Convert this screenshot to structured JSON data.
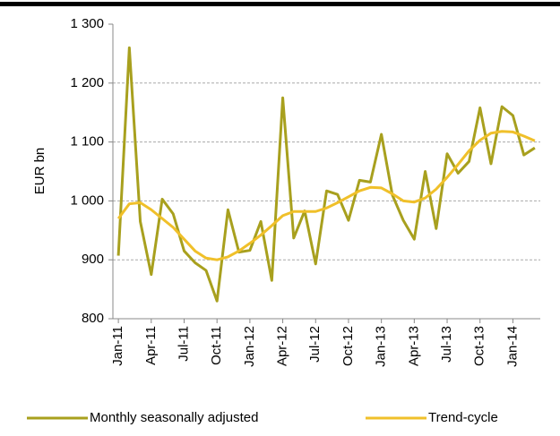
{
  "chart_data": {
    "type": "line",
    "y_label": "EUR bn",
    "categories": [
      "Jan-11",
      null,
      null,
      "Apr-11",
      null,
      null,
      "Jul-11",
      null,
      null,
      "Oct-11",
      null,
      null,
      "Jan-12",
      null,
      null,
      "Apr-12",
      null,
      null,
      "Jul-12",
      null,
      null,
      "Oct-12",
      null,
      null,
      "Jan-13",
      null,
      null,
      "Apr-13",
      null,
      null,
      "Jul-13",
      null,
      null,
      "Oct-13",
      null,
      null,
      "Jan-14",
      null,
      null
    ],
    "series": [
      {
        "name": "Monthly seasonally adjusted",
        "color": "#a8a01e",
        "values": [
          907,
          1260,
          965,
          875,
          1003,
          978,
          915,
          895,
          882,
          830,
          985,
          913,
          916,
          965,
          865,
          1175,
          937,
          983,
          893,
          1017,
          1011,
          967,
          1035,
          1032,
          1113,
          1010,
          967,
          935,
          1050,
          953,
          1080,
          1047,
          1067,
          1158,
          1063,
          1160,
          1145,
          1078,
          1090
        ]
      },
      {
        "name": "Trend-cycle",
        "color": "#f0c02a",
        "values": [
          970,
          995,
          997,
          985,
          970,
          955,
          935,
          915,
          903,
          900,
          905,
          915,
          928,
          942,
          958,
          975,
          982,
          982,
          982,
          988,
          997,
          1007,
          1017,
          1023,
          1022,
          1012,
          1000,
          998,
          1005,
          1020,
          1040,
          1062,
          1085,
          1103,
          1115,
          1118,
          1117,
          1110,
          1102
        ]
      }
    ],
    "ylim": [
      800,
      1300
    ],
    "yticks": [
      {
        "value": 800,
        "label": "800"
      },
      {
        "value": 900,
        "label": "900"
      },
      {
        "value": 1000,
        "label": "1 000"
      },
      {
        "value": 1100,
        "label": "1 100"
      },
      {
        "value": 1200,
        "label": "1 200"
      },
      {
        "value": 1300,
        "label": "1 300"
      }
    ],
    "grid": true
  }
}
